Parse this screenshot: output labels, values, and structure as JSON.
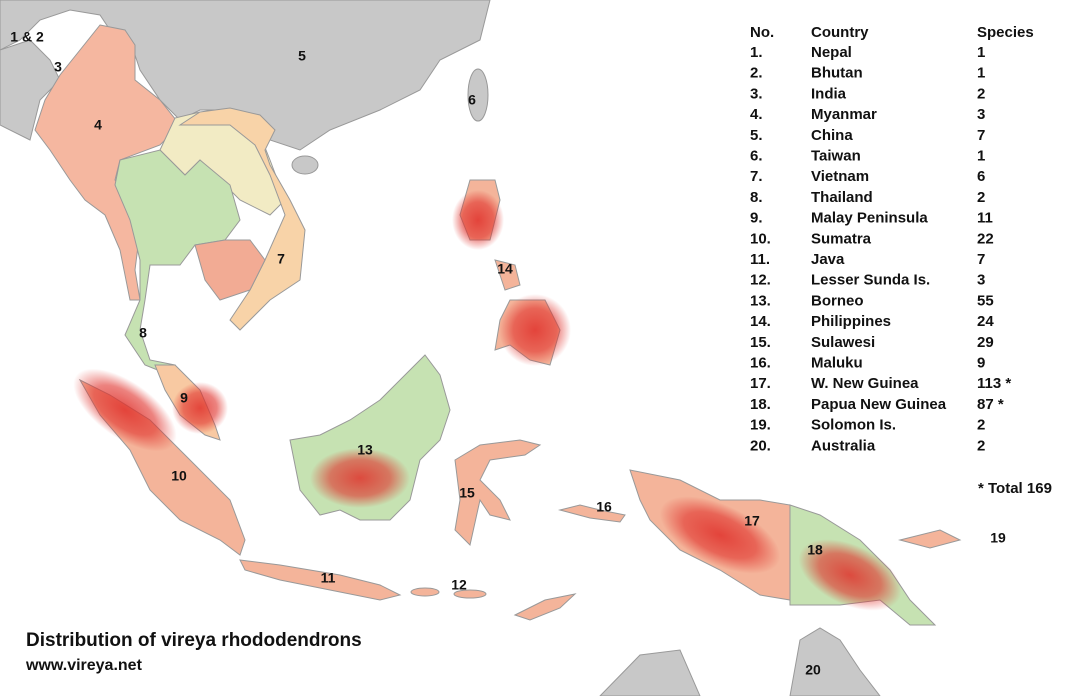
{
  "title": "Distribution of vireya rhododendrons",
  "url": "www.vireya.net",
  "table": {
    "header": [
      "No.",
      "Country",
      "Species"
    ],
    "rows": [
      [
        "1.",
        "Nepal",
        "1"
      ],
      [
        "2.",
        "Bhutan",
        "1"
      ],
      [
        "3.",
        "India",
        "2"
      ],
      [
        "4.",
        "Myanmar",
        "3"
      ],
      [
        "5.",
        "China",
        "7"
      ],
      [
        "6.",
        "Taiwan",
        "1"
      ],
      [
        "7.",
        "Vietnam",
        "6"
      ],
      [
        "8.",
        "Thailand",
        "2"
      ],
      [
        "9.",
        "Malay Peninsula",
        "11"
      ],
      [
        "10.",
        "Sumatra",
        "22"
      ],
      [
        "11.",
        "Java",
        "7"
      ],
      [
        "12.",
        "Lesser Sunda Is.",
        "3"
      ],
      [
        "13.",
        "Borneo",
        "55"
      ],
      [
        "14.",
        "Philippines",
        "24"
      ],
      [
        "15.",
        "Sulawesi",
        "29"
      ],
      [
        "16.",
        "Maluku",
        "9"
      ],
      [
        "17.",
        "W. New Guinea",
        "113 *"
      ],
      [
        "18.",
        "Papua New Guinea",
        "87 *"
      ],
      [
        "19.",
        "Solomon Is.",
        "2"
      ],
      [
        "20.",
        "Australia",
        "2"
      ]
    ],
    "note": "* Total 169"
  },
  "map_labels": [
    "1 & 2",
    "3",
    "4",
    "5",
    "6",
    "7",
    "8",
    "9",
    "10",
    "11",
    "12",
    "13",
    "14",
    "15",
    "16",
    "17",
    "18",
    "19",
    "20"
  ]
}
